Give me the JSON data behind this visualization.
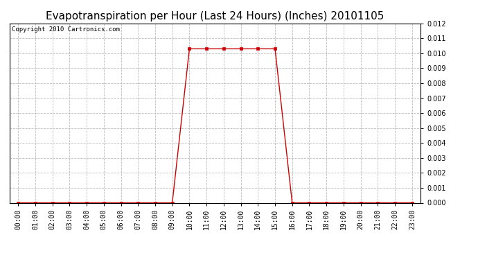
{
  "title": "Evapotranspiration per Hour (Last 24 Hours) (Inches) 20101105",
  "copyright": "Copyright 2010 Cartronics.com",
  "hours": [
    "00:00",
    "01:00",
    "02:00",
    "03:00",
    "04:00",
    "05:00",
    "06:00",
    "07:00",
    "08:00",
    "09:00",
    "10:00",
    "11:00",
    "12:00",
    "13:00",
    "14:00",
    "15:00",
    "16:00",
    "17:00",
    "18:00",
    "19:00",
    "20:00",
    "21:00",
    "22:00",
    "23:00"
  ],
  "values": [
    0.0,
    0.0,
    0.0,
    0.0,
    0.0,
    0.0,
    0.0,
    0.0,
    0.0,
    0.0,
    0.0103,
    0.0103,
    0.0103,
    0.0103,
    0.0103,
    0.0103,
    0.0,
    0.0,
    0.0,
    0.0,
    0.0,
    0.0,
    0.0,
    0.0
  ],
  "line_color": "#cc0000",
  "marker": "s",
  "marker_size": 3,
  "marker_color": "#cc0000",
  "grid_color": "#bbbbbb",
  "grid_style": "--",
  "bg_color": "#ffffff",
  "ylim": [
    0.0,
    0.012
  ],
  "ytick_step": 0.001,
  "title_fontsize": 11,
  "copyright_fontsize": 6.5,
  "tick_fontsize": 7
}
